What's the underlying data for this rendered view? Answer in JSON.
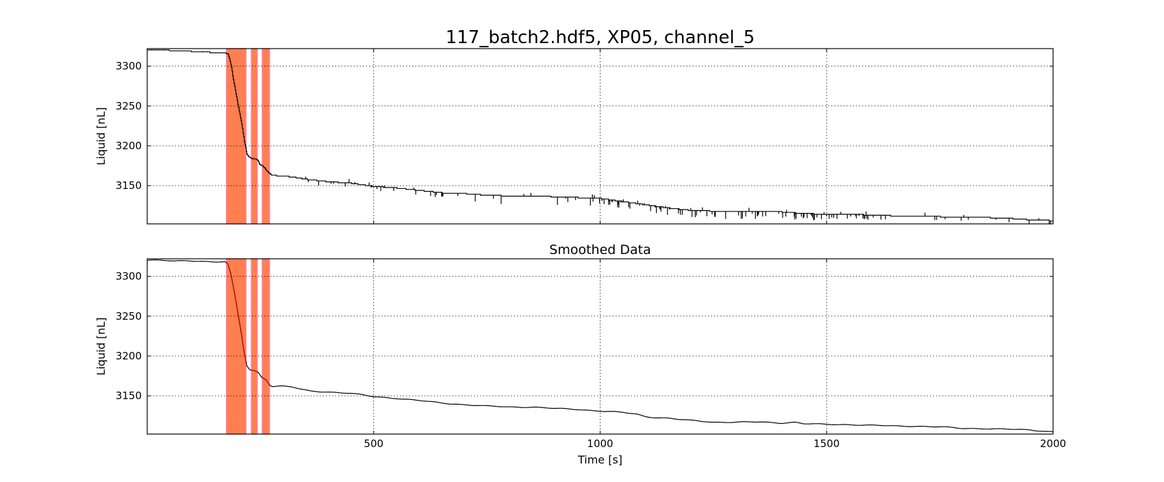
{
  "colors": {
    "series": "#000000",
    "event_fill": "#ff7f50",
    "event_edge": "#ff7fa0",
    "smoothed_event_segment": "#cc0000",
    "grid": "#000000"
  },
  "chart_data": [
    {
      "type": "line",
      "title": "117_batch2.hdf5, XP05, channel_5",
      "xlabel": "",
      "ylabel": "Liquid [nL]",
      "xlim": [
        0,
        2000
      ],
      "ylim": [
        3102,
        3322
      ],
      "xticks": [
        500,
        1000,
        1500,
        2000
      ],
      "xtick_labels": [
        "",
        "",
        "",
        ""
      ],
      "yticks": [
        3150,
        3200,
        3250,
        3300
      ],
      "ytick_labels": [
        "3150",
        "3200",
        "3250",
        "3300"
      ],
      "grid": true,
      "highlight_regions": [
        [
          175,
          218
        ],
        [
          230,
          243
        ],
        [
          254,
          270
        ]
      ],
      "series": [
        {
          "noisy": true,
          "points": [
            [
              0,
              3320
            ],
            [
              40,
              3320
            ],
            [
              80,
              3319
            ],
            [
              120,
              3318
            ],
            [
              150,
              3317
            ],
            [
              170,
              3317
            ],
            [
              178,
              3315
            ],
            [
              182,
              3308
            ],
            [
              186,
              3298
            ],
            [
              190,
              3283
            ],
            [
              195,
              3268
            ],
            [
              200,
              3252
            ],
            [
              205,
              3238
            ],
            [
              210,
              3222
            ],
            [
              215,
              3203
            ],
            [
              220,
              3190
            ],
            [
              225,
              3186
            ],
            [
              232,
              3184
            ],
            [
              238,
              3184
            ],
            [
              244,
              3182
            ],
            [
              248,
              3177
            ],
            [
              256,
              3174
            ],
            [
              262,
              3170
            ],
            [
              268,
              3166
            ],
            [
              275,
              3163
            ],
            [
              300,
              3162
            ],
            [
              320,
              3161
            ],
            [
              350,
              3158
            ],
            [
              400,
              3155
            ],
            [
              450,
              3153
            ],
            [
              500,
              3149
            ],
            [
              550,
              3147
            ],
            [
              600,
              3144
            ],
            [
              650,
              3141
            ],
            [
              700,
              3140
            ],
            [
              750,
              3138
            ],
            [
              800,
              3137
            ],
            [
              850,
              3137
            ],
            [
              900,
              3136
            ],
            [
              950,
              3135
            ],
            [
              1000,
              3134
            ],
            [
              1050,
              3130
            ],
            [
              1100,
              3126
            ],
            [
              1150,
              3122
            ],
            [
              1200,
              3119
            ],
            [
              1250,
              3118
            ],
            [
              1300,
              3118
            ],
            [
              1350,
              3118
            ],
            [
              1400,
              3117
            ],
            [
              1450,
              3115
            ],
            [
              1500,
              3114
            ],
            [
              1550,
              3114
            ],
            [
              1600,
              3113
            ],
            [
              1650,
              3112
            ],
            [
              1700,
              3112
            ],
            [
              1750,
              3111
            ],
            [
              1800,
              3110
            ],
            [
              1850,
              3110
            ],
            [
              1900,
              3109
            ],
            [
              1950,
              3107
            ],
            [
              2000,
              3106
            ]
          ]
        }
      ]
    },
    {
      "type": "line",
      "title": "Smoothed Data",
      "xlabel": "Time [s]",
      "ylabel": "Liquid [nL]",
      "xlim": [
        0,
        2000
      ],
      "ylim": [
        3102,
        3322
      ],
      "xticks": [
        500,
        1000,
        1500,
        2000
      ],
      "xtick_labels": [
        "500",
        "1000",
        "1500",
        "2000"
      ],
      "yticks": [
        3150,
        3200,
        3250,
        3300
      ],
      "ytick_labels": [
        "3150",
        "3200",
        "3250",
        "3300"
      ],
      "grid": true,
      "highlight_regions": [
        [
          175,
          218
        ],
        [
          230,
          243
        ],
        [
          254,
          270
        ]
      ],
      "series": [
        {
          "noisy": false,
          "points": [
            [
              0,
              3320
            ],
            [
              30,
              3320
            ],
            [
              60,
              3319
            ],
            [
              90,
              3320
            ],
            [
              120,
              3319
            ],
            [
              150,
              3318
            ],
            [
              172,
              3318
            ],
            [
              178,
              3315
            ],
            [
              184,
              3304
            ],
            [
              190,
              3287
            ],
            [
              196,
              3268
            ],
            [
              202,
              3248
            ],
            [
              208,
              3228
            ],
            [
              214,
              3205
            ],
            [
              220,
              3188
            ],
            [
              226,
              3183
            ],
            [
              232,
              3182
            ],
            [
              240,
              3181
            ],
            [
              246,
              3179
            ],
            [
              252,
              3174
            ],
            [
              258,
              3172
            ],
            [
              264,
              3170
            ],
            [
              270,
              3164
            ],
            [
              276,
              3162
            ],
            [
              300,
              3162
            ],
            [
              320,
              3161
            ],
            [
              340,
              3158
            ],
            [
              360,
              3156
            ],
            [
              400,
              3155
            ],
            [
              450,
              3153
            ],
            [
              500,
              3149
            ],
            [
              550,
              3147
            ],
            [
              600,
              3144
            ],
            [
              650,
              3141
            ],
            [
              700,
              3139
            ],
            [
              750,
              3137
            ],
            [
              800,
              3136
            ],
            [
              850,
              3136
            ],
            [
              900,
              3134
            ],
            [
              950,
              3133
            ],
            [
              1000,
              3131
            ],
            [
              1050,
              3129
            ],
            [
              1080,
              3127
            ],
            [
              1100,
              3124
            ],
            [
              1120,
              3123
            ],
            [
              1150,
              3122
            ],
            [
              1180,
              3120
            ],
            [
              1200,
              3119
            ],
            [
              1250,
              3117
            ],
            [
              1300,
              3117
            ],
            [
              1350,
              3117
            ],
            [
              1400,
              3116
            ],
            [
              1430,
              3117
            ],
            [
              1450,
              3115
            ],
            [
              1500,
              3114
            ],
            [
              1550,
              3114
            ],
            [
              1600,
              3113
            ],
            [
              1650,
              3112
            ],
            [
              1700,
              3112
            ],
            [
              1750,
              3111
            ],
            [
              1800,
              3109
            ],
            [
              1850,
              3109
            ],
            [
              1900,
              3108
            ],
            [
              1950,
              3107
            ],
            [
              2000,
              3105
            ]
          ]
        }
      ]
    }
  ]
}
